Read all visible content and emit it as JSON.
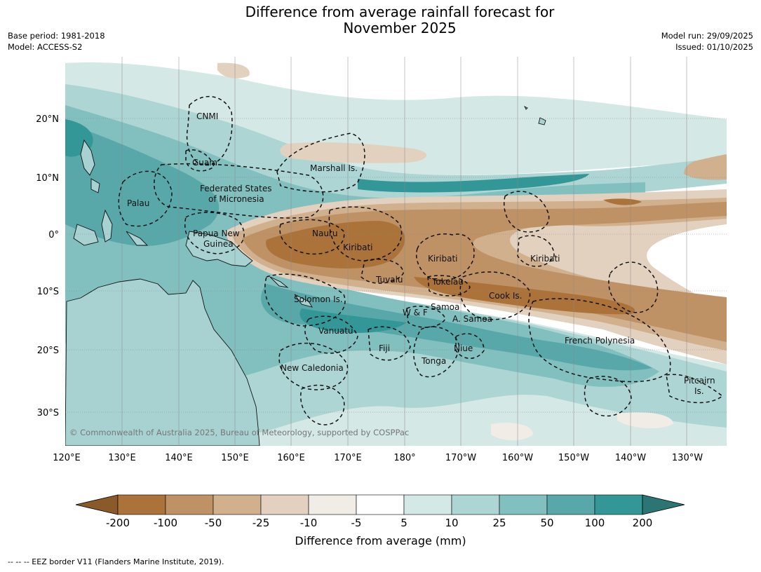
{
  "title": {
    "line1": "Difference from average rainfall forecast for",
    "line2": "November 2025"
  },
  "meta_left": {
    "base_period": "Base period: 1981-2018",
    "model": "Model: ACCESS-S2"
  },
  "meta_right": {
    "model_run": "Model run: 29/09/2025",
    "issued": "Issued: 01/10/2025"
  },
  "map": {
    "lon_labels": [
      "120°E",
      "130°E",
      "140°E",
      "150°E",
      "160°E",
      "170°E",
      "180°",
      "170°W",
      "160°W",
      "150°W",
      "140°W",
      "130°W"
    ],
    "lat_labels": [
      "20°N",
      "10°N",
      "0°",
      "10°S",
      "20°S",
      "30°S"
    ],
    "copyright": "© Commonwealth of Australia 2025, Bureau of Meteorology, supported by COSPPac",
    "regions": {
      "cnmi": "CNMI",
      "guam": "Guam",
      "marshall": "Marshall Is.",
      "fsm1": "Federated States",
      "fsm2": "of Micronesia",
      "palau": "Palau",
      "png1": "Papua New",
      "png2": "Guinea",
      "nauru": "Nauru",
      "kiribati1": "Kiribati",
      "kiribati2": "Kiribati",
      "kiribati3": "Kiribati",
      "tuvalu": "Tuvalu",
      "tokelau": "Tokelau",
      "cook": "Cook Is.",
      "solomon": "Solomon Is.",
      "samoa": "Samoa",
      "wf": "W & F",
      "asamoa": "A. Samoa",
      "vanuatu": "Vanuatu",
      "fiji": "Fiji",
      "niue": "Niue",
      "tonga": "Tonga",
      "fp": "French Polynesia",
      "newcal": "New Caledonia",
      "pitcairn1": "Pitcairn",
      "pitcairn2": "Is."
    }
  },
  "colorbar": {
    "ticks": [
      "-200",
      "-100",
      "-50",
      "-25",
      "-10",
      "-5",
      "5",
      "10",
      "25",
      "50",
      "100",
      "200"
    ],
    "colors": [
      "#8b5a2b",
      "#ab7339",
      "#bf9266",
      "#d1b08d",
      "#e3d1bf",
      "#f1ece5",
      "#ffffff",
      "#d4e8e6",
      "#acd5d3",
      "#82bfbf",
      "#58a8aa",
      "#329796",
      "#2b7573"
    ],
    "label": "Difference from average (mm)"
  },
  "footer": "--  --  -- EEZ border V11 (Flanders Marine Institute, 2019)."
}
